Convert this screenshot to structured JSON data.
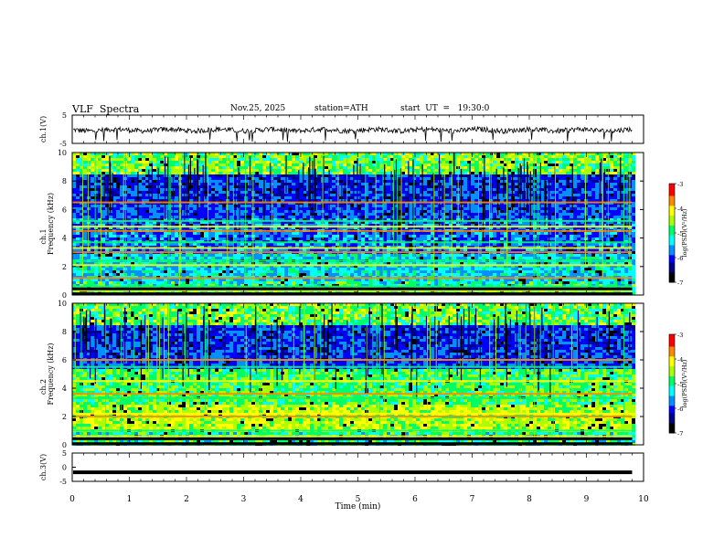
{
  "header": {
    "title": "VLF  Spectra",
    "date": "Nov.25, 2025",
    "station": "station=ATH",
    "start": "start  UT  =   19:30:0"
  },
  "colors": {
    "spectrogram_scale": [
      "#000000",
      "#00008b",
      "#0000ff",
      "#0090ff",
      "#00ffff",
      "#00ff66",
      "#aaff00",
      "#ffff00",
      "#ff8800",
      "#ff0000",
      "#ffffff"
    ],
    "trace": "#000000"
  },
  "chart_data": [
    {
      "type": "line",
      "name": "ch1-waveform",
      "ylabel": "ch.1(V)",
      "ylim": [
        -5,
        5
      ],
      "yticks": [
        "5",
        "-5"
      ],
      "xlim": [
        0,
        10
      ],
      "x_unit": "min",
      "values_description_free": true,
      "level": -0.3
    },
    {
      "type": "heatmap",
      "name": "ch1-spectrogram",
      "ylabel_top": "ch.1",
      "ylabel": "Frequency  (kHz)",
      "ylim": [
        0,
        10
      ],
      "yticks": [
        "0",
        "2",
        "4",
        "6",
        "8",
        "10"
      ],
      "xlim": [
        0,
        10
      ],
      "data_end_min": 9.8,
      "colorbar": {
        "label": "log(PSD)(V²/Hz)",
        "range": [
          -7,
          -3
        ],
        "ticks": [
          "-3",
          "-4",
          "-5",
          "-6",
          "-7"
        ]
      },
      "bands_khz": [
        0.3,
        0.6,
        1.2,
        2.1,
        2.4,
        3.0,
        3.3,
        3.7,
        4.5,
        4.8,
        5.2,
        6.5
      ]
    },
    {
      "type": "heatmap",
      "name": "ch2-spectrogram",
      "ylabel_top": "ch.2",
      "ylabel": "Frequency  (kHz)",
      "ylim": [
        0,
        10
      ],
      "yticks": [
        "0",
        "2",
        "4",
        "6",
        "8",
        "10"
      ],
      "xlim": [
        0,
        10
      ],
      "data_end_min": 9.8,
      "colorbar": {
        "label": "log(PSD)(V²/Hz)",
        "range": [
          -7,
          -3
        ],
        "ticks": [
          "-3",
          "-4",
          "-5",
          "-6",
          "-7"
        ]
      },
      "bands_khz": [
        0.6,
        1.0,
        2.0,
        2.2,
        3.3,
        3.6,
        4.5,
        5.5,
        6.0
      ]
    },
    {
      "type": "line",
      "name": "ch3-waveform",
      "ylabel": "ch.3(V)",
      "ylim": [
        -5,
        5
      ],
      "yticks": [
        "5",
        "0",
        "-5"
      ],
      "xlim": [
        0,
        10
      ],
      "level": -1.8
    }
  ],
  "xaxis": {
    "label": "Time  (min)",
    "ticks": [
      "0",
      "1",
      "2",
      "3",
      "4",
      "5",
      "6",
      "7",
      "8",
      "9",
      "10"
    ]
  }
}
